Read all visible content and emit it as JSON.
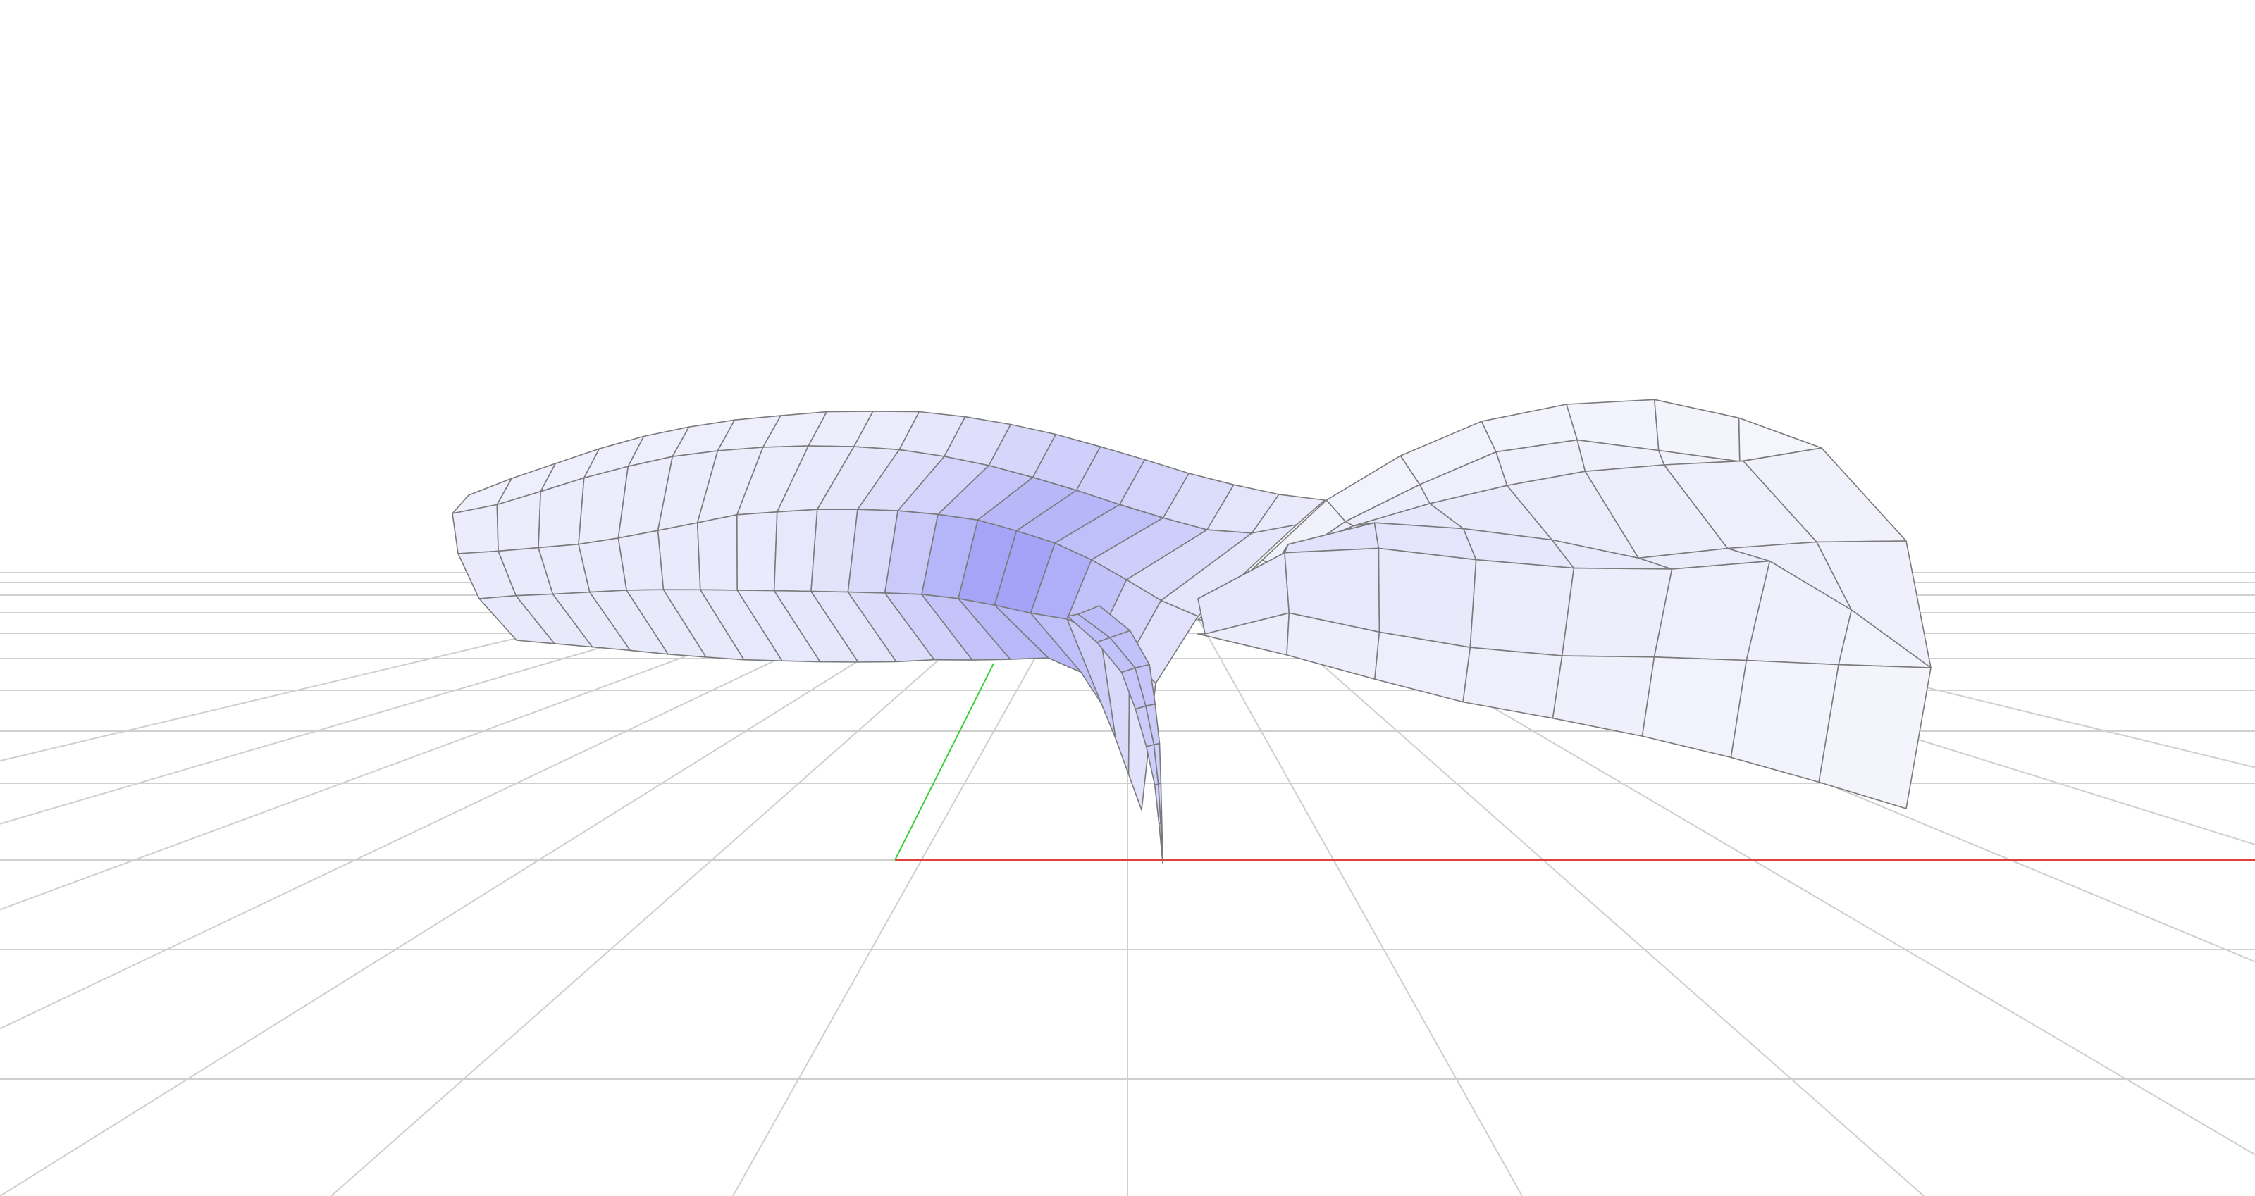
{
  "scene": {
    "background_color": "#ffffff",
    "grid": {
      "visible": true,
      "color": "#cfcfcf"
    },
    "axes": {
      "x_axis_color": "#e04040",
      "y_axis_color": "#3ad03a"
    },
    "surface": {
      "type": "wireframe-shaded-surface",
      "edge_color": "#7a7a7a",
      "shade_low": "#fbfbfd",
      "shade_high": "#a3a3f8"
    }
  }
}
